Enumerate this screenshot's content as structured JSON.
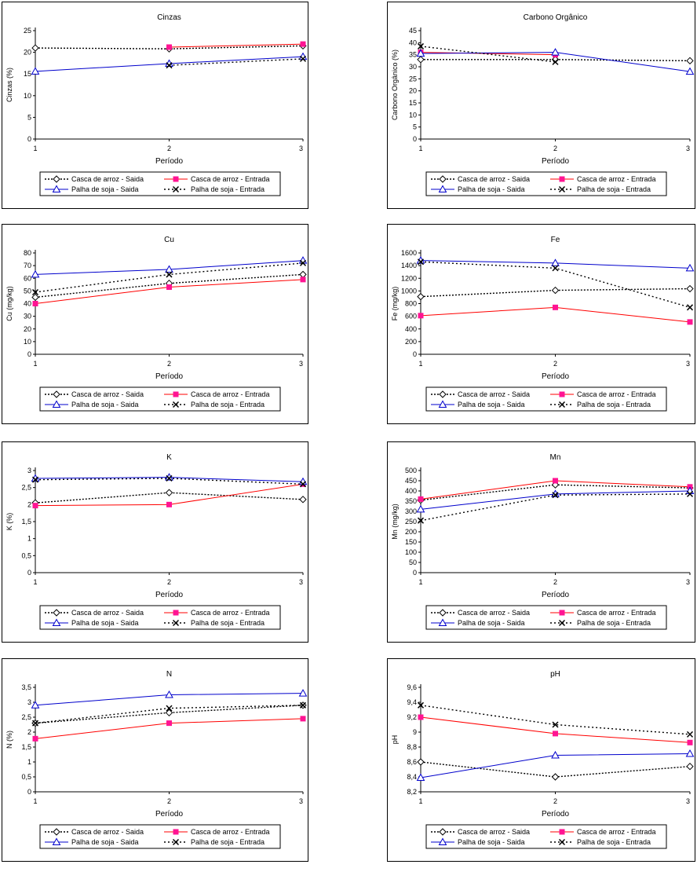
{
  "legend_labels": {
    "cas_saida": "Casca de arroz - Saida",
    "cas_entrada": "Casca de arroz - Entrada",
    "pal_saida": "Palha de soja - Saida",
    "pal_entrada": "Palha de soja - Entrada"
  },
  "series_styles": {
    "cas_saida": {
      "color": "#000000",
      "dash": "2,2",
      "marker": "diamond"
    },
    "cas_entrada": {
      "color": "#ff0000",
      "dash": "",
      "marker": "square",
      "marker_color": "#ff1493"
    },
    "pal_saida": {
      "color": "#0000cc",
      "dash": "",
      "marker": "triangle"
    },
    "pal_entrada": {
      "color": "#000000",
      "dash": "2,3",
      "marker": "x"
    }
  },
  "chart_data": [
    {
      "type": "line",
      "title": "Cinzas",
      "xlabel": "Período",
      "ylabel": "Cinzas (%)",
      "categories": [
        "1",
        "2",
        "3"
      ],
      "ylim": [
        0,
        25
      ],
      "yticks": [
        "0",
        "5",
        "10",
        "15",
        "20",
        "25"
      ],
      "series": [
        {
          "name": "Casca de arroz - Saida",
          "key": "cas_saida",
          "values": [
            21,
            20.8,
            21.5
          ]
        },
        {
          "name": "Casca de arroz - Entrada",
          "key": "cas_entrada",
          "values": [
            null,
            21.2,
            21.9
          ]
        },
        {
          "name": "Palha de soja - Saida",
          "key": "pal_saida",
          "values": [
            15.6,
            17.4,
            19.0
          ]
        },
        {
          "name": "Palha de soja - Entrada",
          "key": "pal_entrada",
          "values": [
            null,
            17.0,
            18.5
          ]
        }
      ]
    },
    {
      "type": "line",
      "title": "Carbono Orgânico",
      "xlabel": "Período",
      "ylabel": "Carbono Orgânico (%)",
      "categories": [
        "1",
        "2",
        "3"
      ],
      "ylim": [
        0,
        45
      ],
      "yticks": [
        "0",
        "5",
        "10",
        "15",
        "20",
        "25",
        "30",
        "35",
        "40",
        "45"
      ],
      "series": [
        {
          "name": "Casca de arroz - Saida",
          "key": "cas_saida",
          "values": [
            33,
            33,
            32.5
          ]
        },
        {
          "name": "Casca de arroz - Entrada",
          "key": "cas_entrada",
          "values": [
            36,
            35,
            null
          ]
        },
        {
          "name": "Palha de soja - Saida",
          "key": "pal_saida",
          "values": [
            35.5,
            36,
            28
          ]
        },
        {
          "name": "Palha de soja - Entrada",
          "key": "pal_entrada",
          "values": [
            38.5,
            32,
            null
          ]
        }
      ]
    },
    {
      "type": "line",
      "title": "Cu",
      "xlabel": "Período",
      "ylabel": "Cu (mg/kg)",
      "categories": [
        "1",
        "2",
        "3"
      ],
      "ylim": [
        0,
        80
      ],
      "yticks": [
        "0",
        "10",
        "20",
        "30",
        "40",
        "50",
        "60",
        "70",
        "80"
      ],
      "series": [
        {
          "name": "Casca de arroz - Saida",
          "key": "cas_saida",
          "values": [
            45,
            56,
            63
          ]
        },
        {
          "name": "Casca de arroz - Entrada",
          "key": "cas_entrada",
          "values": [
            40,
            53,
            59
          ]
        },
        {
          "name": "Palha de soja - Saida",
          "key": "pal_saida",
          "values": [
            63,
            67,
            74
          ]
        },
        {
          "name": "Palha de soja - Entrada",
          "key": "pal_entrada",
          "values": [
            49,
            63,
            72
          ]
        }
      ]
    },
    {
      "type": "line",
      "title": "Fe",
      "xlabel": "Período",
      "ylabel": "Fe (mg/kg)",
      "categories": [
        "1",
        "2",
        "3"
      ],
      "ylim": [
        0,
        1600
      ],
      "yticks": [
        "0",
        "200",
        "400",
        "600",
        "800",
        "1000",
        "1200",
        "1400",
        "1600"
      ],
      "series": [
        {
          "name": "Casca de arroz - Saida",
          "key": "cas_saida",
          "values": [
            910,
            1010,
            1035
          ]
        },
        {
          "name": "Casca de arroz - Entrada",
          "key": "cas_entrada",
          "values": [
            610,
            740,
            510
          ]
        },
        {
          "name": "Palha de soja - Saida",
          "key": "pal_saida",
          "values": [
            1480,
            1440,
            1360
          ]
        },
        {
          "name": "Palha de soja - Entrada",
          "key": "pal_entrada",
          "values": [
            1460,
            1360,
            740
          ]
        }
      ]
    },
    {
      "type": "line",
      "title": "K",
      "xlabel": "Período",
      "ylabel": "K (%)",
      "categories": [
        "1",
        "2",
        "3"
      ],
      "ylim": [
        0,
        3
      ],
      "yticks": [
        "0",
        "0,5",
        "1",
        "1,5",
        "2",
        "2,5",
        "3"
      ],
      "series": [
        {
          "name": "Casca de arroz - Saida",
          "key": "cas_saida",
          "values": [
            2.05,
            2.35,
            2.15
          ]
        },
        {
          "name": "Casca de arroz - Entrada",
          "key": "cas_entrada",
          "values": [
            1.97,
            2.0,
            2.6
          ]
        },
        {
          "name": "Palha de soja - Saida",
          "key": "pal_saida",
          "values": [
            2.77,
            2.8,
            2.67
          ]
        },
        {
          "name": "Palha de soja - Entrada",
          "key": "pal_entrada",
          "values": [
            2.73,
            2.77,
            2.6
          ]
        }
      ]
    },
    {
      "type": "line",
      "title": "Mn",
      "xlabel": "Período",
      "ylabel": "Mn (mg/kg)",
      "categories": [
        "1",
        "2",
        "3"
      ],
      "ylim": [
        0,
        500
      ],
      "yticks": [
        "0",
        "50",
        "100",
        "150",
        "200",
        "250",
        "300",
        "350",
        "400",
        "450",
        "500"
      ],
      "series": [
        {
          "name": "Casca de arroz - Saida",
          "key": "cas_saida",
          "values": [
            355,
            430,
            415
          ]
        },
        {
          "name": "Casca de arroz - Entrada",
          "key": "cas_entrada",
          "values": [
            360,
            450,
            420
          ]
        },
        {
          "name": "Palha de soja - Saida",
          "key": "pal_saida",
          "values": [
            310,
            385,
            400
          ]
        },
        {
          "name": "Palha de soja - Entrada",
          "key": "pal_entrada",
          "values": [
            255,
            380,
            385
          ]
        }
      ]
    },
    {
      "type": "line",
      "title": "N",
      "xlabel": "Período",
      "ylabel": "N (%)",
      "categories": [
        "1",
        "2",
        "3"
      ],
      "ylim": [
        0,
        3.5
      ],
      "yticks": [
        "0",
        "0,5",
        "1",
        "1,5",
        "2",
        "2,5",
        "3",
        "3,5"
      ],
      "series": [
        {
          "name": "Casca de arroz - Saida",
          "key": "cas_saida",
          "values": [
            2.3,
            2.65,
            2.9
          ]
        },
        {
          "name": "Casca de arroz - Entrada",
          "key": "cas_entrada",
          "values": [
            1.78,
            2.3,
            2.45
          ]
        },
        {
          "name": "Palha de soja - Saida",
          "key": "pal_saida",
          "values": [
            2.9,
            3.25,
            3.3
          ]
        },
        {
          "name": "Palha de soja - Entrada",
          "key": "pal_entrada",
          "values": [
            2.3,
            2.8,
            2.9
          ]
        }
      ]
    },
    {
      "type": "line",
      "title": "pH",
      "xlabel": "Período",
      "ylabel": "pH",
      "categories": [
        "1",
        "2",
        "3"
      ],
      "ylim": [
        8.2,
        9.6
      ],
      "yticks": [
        "8,2",
        "8,4",
        "8,6",
        "8,8",
        "9",
        "9,2",
        "9,4",
        "9,6"
      ],
      "series": [
        {
          "name": "Casca de arroz - Saida",
          "key": "cas_saida",
          "values": [
            8.6,
            8.4,
            8.54
          ]
        },
        {
          "name": "Casca de arroz - Entrada",
          "key": "cas_entrada",
          "values": [
            9.2,
            8.98,
            8.86
          ]
        },
        {
          "name": "Palha de soja - Saida",
          "key": "pal_saida",
          "values": [
            8.39,
            8.69,
            8.71
          ]
        },
        {
          "name": "Palha de soja - Entrada",
          "key": "pal_entrada",
          "values": [
            9.36,
            9.1,
            8.97
          ]
        }
      ]
    }
  ]
}
